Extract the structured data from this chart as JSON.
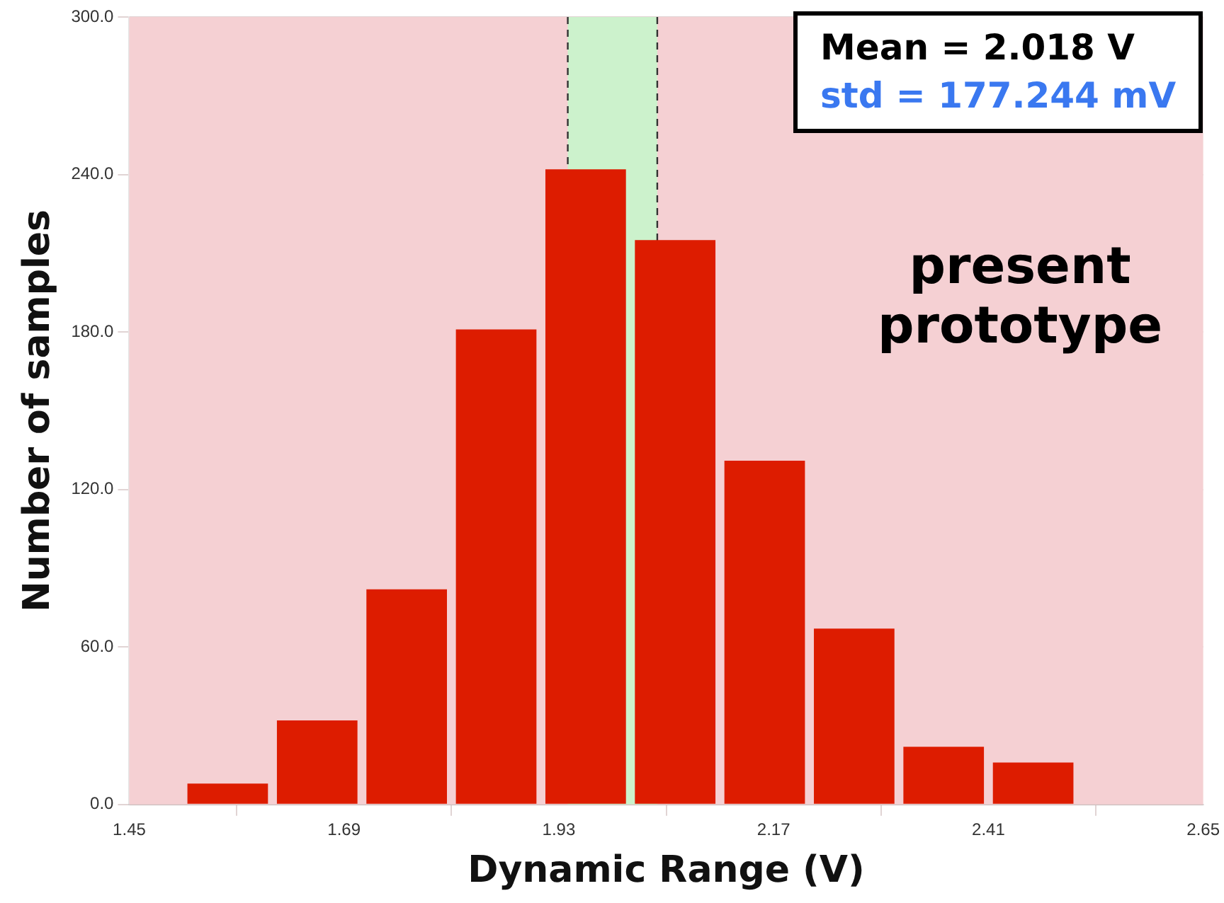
{
  "chart_data": {
    "type": "histogram",
    "xlabel": "Dynamic Range (V)",
    "ylabel": "Number of samples",
    "bins": [
      1.51,
      1.61,
      1.71,
      1.81,
      1.91,
      2.01,
      2.11,
      2.21,
      2.31,
      2.41,
      2.51
    ],
    "values": [
      8,
      32,
      82,
      181,
      242,
      215,
      131,
      67,
      22,
      16
    ],
    "color": "#dd1c00",
    "xlim": [
      1.45,
      2.65
    ],
    "xticks": [
      1.45,
      1.69,
      1.93,
      2.17,
      2.41,
      2.65
    ],
    "ylim": [
      0,
      300
    ],
    "yticks": [
      {
        "value": 0,
        "label": "0.0"
      },
      {
        "value": 60,
        "label": "60.0"
      },
      {
        "value": 120,
        "label": "120.0"
      },
      {
        "value": 180,
        "label": "180.0"
      },
      {
        "value": 240,
        "label": "240.0"
      },
      {
        "value": 300,
        "label": "300.0"
      }
    ],
    "bands": [
      {
        "axis": "x",
        "from": 1.94,
        "to": 2.04,
        "color": "#ccf2cc"
      }
    ],
    "ref_lines": [
      {
        "axis": "x",
        "value": 1.94,
        "color": "#333333",
        "line_style": "dashed"
      },
      {
        "axis": "x",
        "value": 2.04,
        "color": "#333333",
        "line_style": "dashed"
      }
    ],
    "annotations": [
      "Mean = 2.018 V",
      "std = 177.244 mV",
      "present prototype"
    ],
    "grid": true
  }
}
